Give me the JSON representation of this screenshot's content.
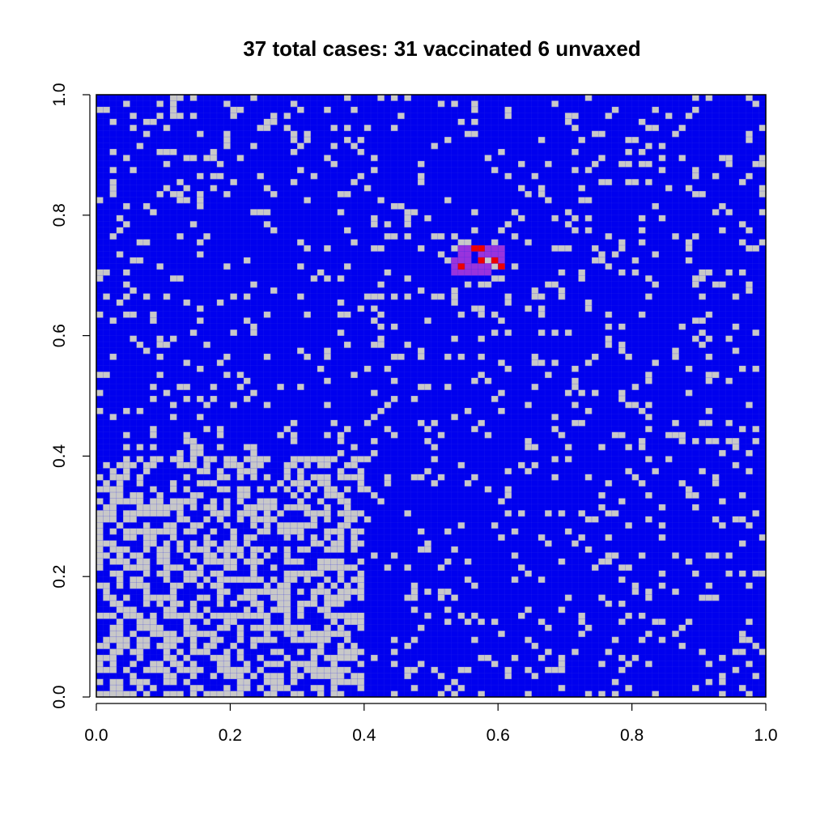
{
  "chart_data": {
    "type": "heatmap",
    "title": "37 total cases: 31 vaccinated 6 unvaxed",
    "xlabel": "",
    "ylabel": "",
    "xlim": [
      0,
      1
    ],
    "ylim": [
      0,
      1
    ],
    "x_ticks": [
      "0.0",
      "0.2",
      "0.4",
      "0.6",
      "0.8",
      "1.0"
    ],
    "y_ticks": [
      "0.0",
      "0.2",
      "0.4",
      "0.6",
      "0.8",
      "1.0"
    ],
    "grid_size": 100,
    "colors": {
      "vaccinated": "#0000ee",
      "unvaccinated": "#c8c8c8",
      "infected_vaccinated": "#9933dd",
      "infected_unvaccinated": "#ee0000",
      "vaccinated_grid": "#2a2ae8",
      "frame": "#000000"
    },
    "regions": [
      {
        "name": "low-vaccination-block",
        "x": [
          0.0,
          0.4
        ],
        "y": [
          0.0,
          0.4
        ],
        "unvaccinated_fraction": 0.5
      },
      {
        "name": "rest",
        "unvaccinated_fraction": 0.11
      }
    ],
    "infected_vaccinated_cells": [
      [
        0.54,
        0.74
      ],
      [
        0.55,
        0.74
      ],
      [
        0.56,
        0.74
      ],
      [
        0.57,
        0.74
      ],
      [
        0.58,
        0.74
      ],
      [
        0.59,
        0.74
      ],
      [
        0.6,
        0.74
      ],
      [
        0.54,
        0.73
      ],
      [
        0.55,
        0.73
      ],
      [
        0.57,
        0.73
      ],
      [
        0.58,
        0.73
      ],
      [
        0.59,
        0.73
      ],
      [
        0.6,
        0.73
      ],
      [
        0.53,
        0.72
      ],
      [
        0.54,
        0.72
      ],
      [
        0.55,
        0.72
      ],
      [
        0.57,
        0.72
      ],
      [
        0.59,
        0.72
      ],
      [
        0.6,
        0.72
      ],
      [
        0.53,
        0.71
      ],
      [
        0.55,
        0.71
      ],
      [
        0.56,
        0.71
      ],
      [
        0.57,
        0.71
      ],
      [
        0.58,
        0.71
      ],
      [
        0.6,
        0.71
      ],
      [
        0.53,
        0.7
      ],
      [
        0.54,
        0.7
      ],
      [
        0.55,
        0.7
      ],
      [
        0.56,
        0.7
      ],
      [
        0.57,
        0.7
      ],
      [
        0.58,
        0.7
      ]
    ],
    "infected_unvaccinated_cells": [
      [
        0.56,
        0.74
      ],
      [
        0.57,
        0.74
      ],
      [
        0.57,
        0.72
      ],
      [
        0.59,
        0.72
      ],
      [
        0.54,
        0.71
      ],
      [
        0.6,
        0.71
      ]
    ]
  }
}
